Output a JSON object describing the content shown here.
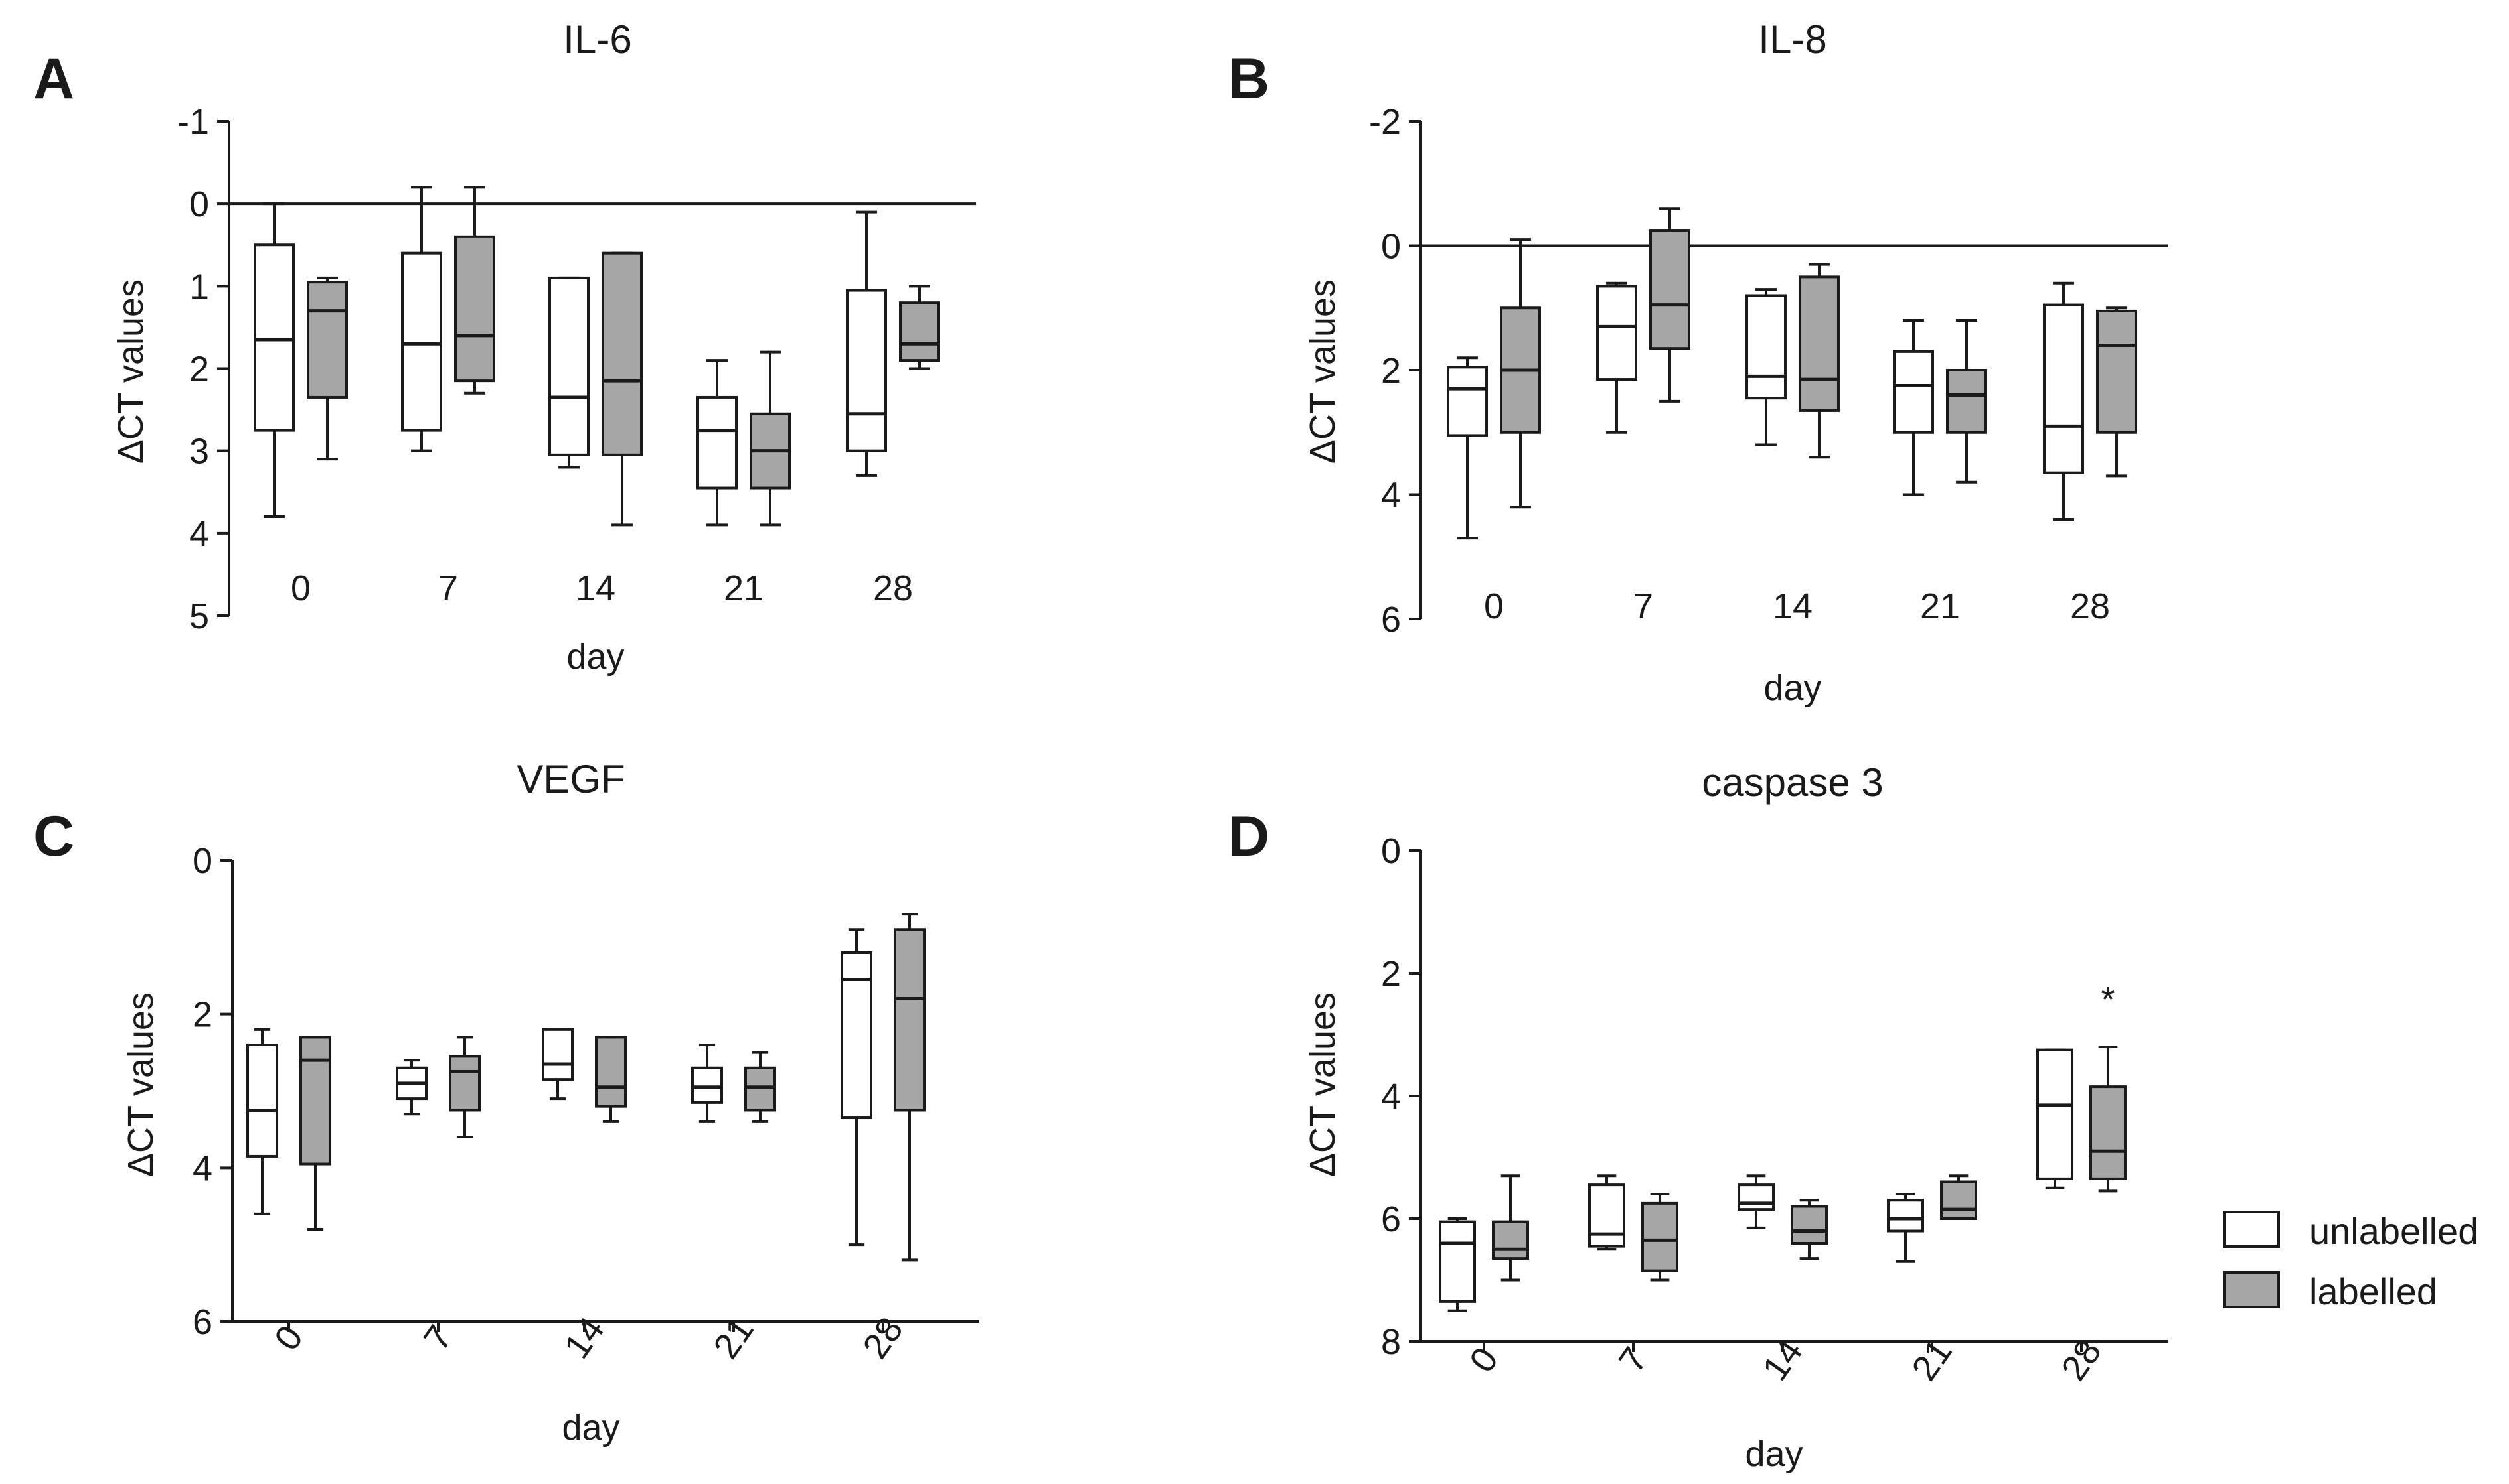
{
  "colors": {
    "unlabelled_fill": "#ffffff",
    "labelled_fill": "#a6a6a6",
    "line": "#1a1a1a"
  },
  "legend": {
    "items": [
      {
        "label": "unlabelled",
        "color": "#ffffff"
      },
      {
        "label": "labelled",
        "color": "#a6a6a6"
      }
    ]
  },
  "chart_data": [
    {
      "panel": "A",
      "type": "box",
      "title": "IL-6",
      "xlabel": "day",
      "ylabel": "ΔCT values",
      "ylim": [
        -1,
        5
      ],
      "y_inverted": true,
      "yticks": [
        -1,
        0,
        1,
        2,
        3,
        4,
        5
      ],
      "reference_line": 0,
      "rotated_x_ticks": false,
      "categories": [
        "0",
        "7",
        "14",
        "21",
        "28"
      ],
      "series": [
        {
          "name": "unlabelled",
          "boxes": [
            {
              "min": 0.0,
              "q1": 0.5,
              "median": 1.65,
              "q3": 2.75,
              "max": 3.8
            },
            {
              "min": -0.2,
              "q1": 0.6,
              "median": 1.7,
              "q3": 2.75,
              "max": 3.0
            },
            {
              "min": 0.9,
              "q1": 0.9,
              "median": 2.35,
              "q3": 3.05,
              "max": 3.2
            },
            {
              "min": 1.9,
              "q1": 2.35,
              "median": 2.75,
              "q3": 3.45,
              "max": 3.9
            },
            {
              "min": 0.1,
              "q1": 1.05,
              "median": 2.55,
              "q3": 3.0,
              "max": 3.3
            }
          ]
        },
        {
          "name": "labelled",
          "boxes": [
            {
              "min": 0.9,
              "q1": 0.95,
              "median": 1.3,
              "q3": 2.35,
              "max": 3.1
            },
            {
              "min": -0.2,
              "q1": 0.4,
              "median": 1.6,
              "q3": 2.15,
              "max": 2.3
            },
            {
              "min": 0.6,
              "q1": 0.6,
              "median": 2.15,
              "q3": 3.05,
              "max": 3.9
            },
            {
              "min": 1.8,
              "q1": 2.55,
              "median": 3.0,
              "q3": 3.45,
              "max": 3.9
            },
            {
              "min": 1.0,
              "q1": 1.2,
              "median": 1.7,
              "q3": 1.9,
              "max": 2.0
            }
          ]
        }
      ],
      "annotations": []
    },
    {
      "panel": "B",
      "type": "box",
      "title": "IL-8",
      "xlabel": "day",
      "ylabel": "ΔCT values",
      "ylim": [
        -2,
        6
      ],
      "y_inverted": true,
      "yticks": [
        -2,
        0,
        2,
        4,
        6
      ],
      "reference_line": 0,
      "rotated_x_ticks": false,
      "categories": [
        "0",
        "7",
        "14",
        "21",
        "28"
      ],
      "series": [
        {
          "name": "unlabelled",
          "boxes": [
            {
              "min": 1.8,
              "q1": 1.95,
              "median": 2.3,
              "q3": 3.05,
              "max": 4.7
            },
            {
              "min": 0.6,
              "q1": 0.65,
              "median": 1.3,
              "q3": 2.15,
              "max": 3.0
            },
            {
              "min": 0.7,
              "q1": 0.8,
              "median": 2.1,
              "q3": 2.45,
              "max": 3.2
            },
            {
              "min": 1.2,
              "q1": 1.7,
              "median": 2.25,
              "q3": 3.0,
              "max": 4.0
            },
            {
              "min": 0.6,
              "q1": 0.95,
              "median": 2.9,
              "q3": 3.65,
              "max": 4.4
            }
          ]
        },
        {
          "name": "labelled",
          "boxes": [
            {
              "min": -0.1,
              "q1": 1.0,
              "median": 2.0,
              "q3": 3.0,
              "max": 4.2
            },
            {
              "min": -0.6,
              "q1": -0.25,
              "median": 0.95,
              "q3": 1.65,
              "max": 2.5
            },
            {
              "min": 0.3,
              "q1": 0.5,
              "median": 2.15,
              "q3": 2.65,
              "max": 3.4
            },
            {
              "min": 1.2,
              "q1": 2.0,
              "median": 2.4,
              "q3": 3.0,
              "max": 3.8
            },
            {
              "min": 1.0,
              "q1": 1.05,
              "median": 1.6,
              "q3": 3.0,
              "max": 3.7
            }
          ]
        }
      ],
      "annotations": []
    },
    {
      "panel": "C",
      "type": "box",
      "title": "VEGF",
      "xlabel": "day",
      "ylabel": "ΔCT values",
      "ylim": [
        0,
        6
      ],
      "y_inverted": true,
      "yticks": [
        0,
        2,
        4,
        6
      ],
      "reference_line": null,
      "rotated_x_ticks": true,
      "categories": [
        "0",
        "7",
        "14",
        "21",
        "28"
      ],
      "series": [
        {
          "name": "unlabelled",
          "boxes": [
            {
              "min": 2.2,
              "q1": 2.4,
              "median": 3.25,
              "q3": 3.85,
              "max": 4.6
            },
            {
              "min": 2.6,
              "q1": 2.7,
              "median": 2.9,
              "q3": 3.1,
              "max": 3.3
            },
            {
              "min": 2.2,
              "q1": 2.2,
              "median": 2.65,
              "q3": 2.85,
              "max": 3.1
            },
            {
              "min": 2.4,
              "q1": 2.7,
              "median": 2.95,
              "q3": 3.15,
              "max": 3.4
            },
            {
              "min": 0.9,
              "q1": 1.2,
              "median": 1.55,
              "q3": 3.35,
              "max": 5.0
            }
          ]
        },
        {
          "name": "labelled",
          "boxes": [
            {
              "min": 2.3,
              "q1": 2.3,
              "median": 2.6,
              "q3": 3.95,
              "max": 4.8
            },
            {
              "min": 2.3,
              "q1": 2.55,
              "median": 2.75,
              "q3": 3.25,
              "max": 3.6
            },
            {
              "min": 2.3,
              "q1": 2.3,
              "median": 2.95,
              "q3": 3.2,
              "max": 3.4
            },
            {
              "min": 2.5,
              "q1": 2.7,
              "median": 2.95,
              "q3": 3.25,
              "max": 3.4
            },
            {
              "min": 0.7,
              "q1": 0.9,
              "median": 1.8,
              "q3": 3.25,
              "max": 5.2
            }
          ]
        }
      ],
      "annotations": []
    },
    {
      "panel": "D",
      "type": "box",
      "title": "caspase 3",
      "xlabel": "day",
      "ylabel": "ΔCT values",
      "ylim": [
        0,
        8
      ],
      "y_inverted": true,
      "yticks": [
        0,
        2,
        4,
        6,
        8
      ],
      "reference_line": null,
      "rotated_x_ticks": true,
      "categories": [
        "0",
        "7",
        "14",
        "21",
        "28"
      ],
      "series": [
        {
          "name": "unlabelled",
          "boxes": [
            {
              "min": 6.0,
              "q1": 6.05,
              "median": 6.4,
              "q3": 7.35,
              "max": 7.5
            },
            {
              "min": 5.3,
              "q1": 5.45,
              "median": 6.25,
              "q3": 6.45,
              "max": 6.5
            },
            {
              "min": 5.3,
              "q1": 5.45,
              "median": 5.75,
              "q3": 5.85,
              "max": 6.15
            },
            {
              "min": 5.6,
              "q1": 5.7,
              "median": 6.0,
              "q3": 6.2,
              "max": 6.7
            },
            {
              "min": 3.25,
              "q1": 3.25,
              "median": 4.15,
              "q3": 5.35,
              "max": 5.5
            }
          ]
        },
        {
          "name": "labelled",
          "boxes": [
            {
              "min": 5.3,
              "q1": 6.05,
              "median": 6.5,
              "q3": 6.65,
              "max": 7.0
            },
            {
              "min": 5.6,
              "q1": 5.75,
              "median": 6.35,
              "q3": 6.85,
              "max": 7.0
            },
            {
              "min": 5.7,
              "q1": 5.8,
              "median": 6.2,
              "q3": 6.4,
              "max": 6.65
            },
            {
              "min": 5.3,
              "q1": 5.4,
              "median": 5.85,
              "q3": 6.0,
              "max": 6.0
            },
            {
              "min": 3.2,
              "q1": 3.85,
              "median": 4.9,
              "q3": 5.35,
              "max": 5.55
            }
          ]
        }
      ],
      "annotations": [
        {
          "text": "*",
          "category": "28",
          "series": "labelled",
          "y": 2.3
        }
      ]
    }
  ]
}
